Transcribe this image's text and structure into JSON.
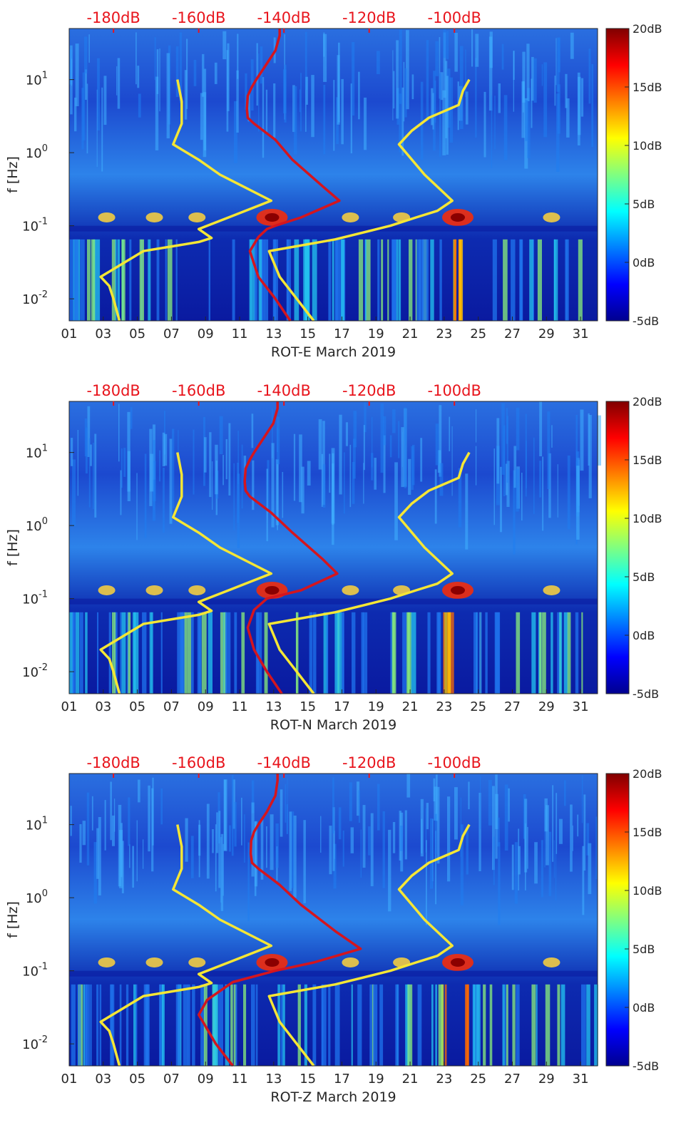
{
  "chart_data": [
    {
      "type": "heatmap",
      "title": "",
      "xlabel": "ROT-E March 2019",
      "ylabel": "f [Hz]",
      "x_ticks": [
        "01",
        "03",
        "05",
        "07",
        "09",
        "11",
        "13",
        "15",
        "17",
        "19",
        "21",
        "23",
        "25",
        "27",
        "29",
        "31"
      ],
      "x_range": [
        1,
        32
      ],
      "y_ticks": [
        {
          "value": 0.01,
          "base": "10",
          "exp": "-2"
        },
        {
          "value": 0.1,
          "base": "10",
          "exp": "-1"
        },
        {
          "value": 1,
          "base": "10",
          "exp": "0"
        },
        {
          "value": 10,
          "base": "10",
          "exp": "1"
        }
      ],
      "y_range": [
        0.005,
        50
      ],
      "y_scale": "log",
      "top_db_labels": [
        "-180dB",
        "-160dB",
        "-140dB",
        "-120dB",
        "-100dB"
      ],
      "top_db_values": [
        -180,
        -160,
        -140,
        -120,
        -100
      ],
      "colorbar": {
        "ticks": [
          "20dB",
          "15dB",
          "10dB",
          "5dB",
          "0dB",
          "-5dB"
        ],
        "range": [
          -5,
          20
        ]
      },
      "series": [
        {
          "name": "yellow-left",
          "color": "#f5e635",
          "db_offset": -185,
          "points": [
            [
              0.005,
              -178.6
            ],
            [
              0.01,
              -180
            ],
            [
              0.015,
              -181
            ],
            [
              0.02,
              -183
            ],
            [
              0.03,
              -178
            ],
            [
              0.045,
              -173
            ],
            [
              0.06,
              -160
            ],
            [
              0.068,
              -157
            ],
            [
              0.09,
              -160
            ],
            [
              0.1,
              -158
            ],
            [
              0.13,
              -153
            ],
            [
              0.22,
              -143
            ],
            [
              0.5,
              -155
            ],
            [
              0.8,
              -160
            ],
            [
              1.3,
              -166
            ],
            [
              2.5,
              -164
            ],
            [
              5,
              -164
            ],
            [
              10,
              -165
            ]
          ]
        },
        {
          "name": "red",
          "color": "#d4151e",
          "db_offset": 0,
          "points": [
            [
              0.005,
              -138.5
            ],
            [
              0.01,
              -142
            ],
            [
              0.02,
              -146
            ],
            [
              0.045,
              -148
            ],
            [
              0.07,
              -146
            ],
            [
              0.09,
              -144
            ],
            [
              0.1,
              -142
            ],
            [
              0.13,
              -136
            ],
            [
              0.22,
              -127
            ],
            [
              0.35,
              -131
            ],
            [
              0.8,
              -138
            ],
            [
              1.5,
              -142
            ],
            [
              2.5,
              -147
            ],
            [
              3,
              -148.5
            ],
            [
              4,
              -148.7
            ],
            [
              6,
              -148.5
            ],
            [
              8,
              -147.5
            ],
            [
              10,
              -146.5
            ],
            [
              15,
              -144.5
            ],
            [
              25,
              -142
            ],
            [
              40,
              -141
            ],
            [
              50,
              -141
            ]
          ]
        },
        {
          "name": "yellow-right",
          "color": "#f5e635",
          "db_offset": 0,
          "points": [
            [
              0.005,
              -133
            ],
            [
              0.01,
              -137
            ],
            [
              0.02,
              -141
            ],
            [
              0.045,
              -143.5
            ],
            [
              0.065,
              -128
            ],
            [
              0.1,
              -115
            ],
            [
              0.13,
              -109
            ],
            [
              0.16,
              -104
            ],
            [
              0.22,
              -100.5
            ],
            [
              0.5,
              -107
            ],
            [
              1.3,
              -113
            ],
            [
              2,
              -110
            ],
            [
              3,
              -106
            ],
            [
              4.5,
              -99
            ],
            [
              7,
              -98
            ],
            [
              10,
              -96.5
            ]
          ]
        }
      ]
    },
    {
      "type": "heatmap",
      "title": "",
      "xlabel": "ROT-N March 2019",
      "ylabel": "f [Hz]",
      "x_ticks": [
        "01",
        "03",
        "05",
        "07",
        "09",
        "11",
        "13",
        "15",
        "17",
        "19",
        "21",
        "23",
        "25",
        "27",
        "29",
        "31"
      ],
      "x_range": [
        1,
        32
      ],
      "y_ticks": [
        {
          "value": 0.01,
          "base": "10",
          "exp": "-2"
        },
        {
          "value": 0.1,
          "base": "10",
          "exp": "-1"
        },
        {
          "value": 1,
          "base": "10",
          "exp": "0"
        },
        {
          "value": 10,
          "base": "10",
          "exp": "1"
        }
      ],
      "y_range": [
        0.005,
        50
      ],
      "y_scale": "log",
      "top_db_labels": [
        "-180dB",
        "-160dB",
        "-140dB",
        "-120dB",
        "-100dB"
      ],
      "top_db_values": [
        -180,
        -160,
        -140,
        -120,
        -100
      ],
      "colorbar": {
        "ticks": [
          "20dB",
          "15dB",
          "10dB",
          "5dB",
          "0dB",
          "-5dB"
        ],
        "range": [
          -5,
          20
        ]
      },
      "series": [
        {
          "name": "yellow-left",
          "color": "#f5e635",
          "points": [
            [
              0.005,
              -178.6
            ],
            [
              0.01,
              -180
            ],
            [
              0.015,
              -181
            ],
            [
              0.02,
              -183
            ],
            [
              0.03,
              -178
            ],
            [
              0.045,
              -173
            ],
            [
              0.06,
              -160
            ],
            [
              0.068,
              -157
            ],
            [
              0.09,
              -160
            ],
            [
              0.1,
              -158
            ],
            [
              0.13,
              -153
            ],
            [
              0.22,
              -143
            ],
            [
              0.5,
              -155
            ],
            [
              0.8,
              -160
            ],
            [
              1.3,
              -166
            ],
            [
              2.5,
              -164
            ],
            [
              5,
              -164
            ],
            [
              10,
              -165
            ]
          ]
        },
        {
          "name": "red",
          "color": "#d4151e",
          "points": [
            [
              0.005,
              -140.5
            ],
            [
              0.01,
              -144
            ],
            [
              0.02,
              -147
            ],
            [
              0.04,
              -148.5
            ],
            [
              0.07,
              -147
            ],
            [
              0.1,
              -144
            ],
            [
              0.13,
              -136
            ],
            [
              0.22,
              -127.5
            ],
            [
              0.35,
              -131
            ],
            [
              0.8,
              -138
            ],
            [
              1.5,
              -143
            ],
            [
              2.5,
              -148
            ],
            [
              3,
              -149
            ],
            [
              4,
              -149.2
            ],
            [
              6,
              -149
            ],
            [
              8,
              -148
            ],
            [
              10,
              -147
            ],
            [
              15,
              -145
            ],
            [
              25,
              -142.5
            ],
            [
              40,
              -141.5
            ],
            [
              50,
              -141.5
            ]
          ]
        },
        {
          "name": "yellow-right",
          "color": "#f5e635",
          "points": [
            [
              0.005,
              -133
            ],
            [
              0.01,
              -137
            ],
            [
              0.02,
              -141
            ],
            [
              0.045,
              -143.5
            ],
            [
              0.065,
              -128
            ],
            [
              0.1,
              -115
            ],
            [
              0.13,
              -109
            ],
            [
              0.16,
              -104
            ],
            [
              0.22,
              -100.5
            ],
            [
              0.5,
              -107
            ],
            [
              1.3,
              -113
            ],
            [
              2,
              -110
            ],
            [
              3,
              -106
            ],
            [
              4.5,
              -99
            ],
            [
              7,
              -98
            ],
            [
              10,
              -96.5
            ]
          ]
        }
      ]
    },
    {
      "type": "heatmap",
      "title": "",
      "xlabel": "ROT-Z March 2019",
      "ylabel": "f [Hz]",
      "x_ticks": [
        "01",
        "03",
        "05",
        "07",
        "09",
        "11",
        "13",
        "15",
        "17",
        "19",
        "21",
        "23",
        "25",
        "27",
        "29",
        "31"
      ],
      "x_range": [
        1,
        32
      ],
      "y_ticks": [
        {
          "value": 0.01,
          "base": "10",
          "exp": "-2"
        },
        {
          "value": 0.1,
          "base": "10",
          "exp": "-1"
        },
        {
          "value": 1,
          "base": "10",
          "exp": "0"
        },
        {
          "value": 10,
          "base": "10",
          "exp": "1"
        }
      ],
      "y_range": [
        0.005,
        50
      ],
      "y_scale": "log",
      "top_db_labels": [
        "-180dB",
        "-160dB",
        "-140dB",
        "-120dB",
        "-100dB"
      ],
      "top_db_values": [
        -180,
        -160,
        -140,
        -120,
        -100
      ],
      "colorbar": {
        "ticks": [
          "20dB",
          "15dB",
          "10dB",
          "5dB",
          "0dB",
          "-5dB"
        ],
        "range": [
          -5,
          20
        ]
      },
      "series": [
        {
          "name": "yellow-left",
          "color": "#f5e635",
          "points": [
            [
              0.005,
              -178.6
            ],
            [
              0.01,
              -180
            ],
            [
              0.015,
              -181
            ],
            [
              0.02,
              -183
            ],
            [
              0.03,
              -178
            ],
            [
              0.045,
              -173
            ],
            [
              0.06,
              -160
            ],
            [
              0.068,
              -157
            ],
            [
              0.09,
              -160
            ],
            [
              0.1,
              -158
            ],
            [
              0.13,
              -153
            ],
            [
              0.22,
              -143
            ],
            [
              0.5,
              -155
            ],
            [
              0.8,
              -160
            ],
            [
              1.3,
              -166
            ],
            [
              2.5,
              -164
            ],
            [
              5,
              -164
            ],
            [
              10,
              -165
            ]
          ]
        },
        {
          "name": "red",
          "color": "#d4151e",
          "points": [
            [
              0.005,
              -152
            ],
            [
              0.01,
              -156
            ],
            [
              0.02,
              -159
            ],
            [
              0.025,
              -160
            ],
            [
              0.04,
              -158
            ],
            [
              0.07,
              -152
            ],
            [
              0.1,
              -142
            ],
            [
              0.13,
              -133
            ],
            [
              0.2,
              -122
            ],
            [
              0.35,
              -128
            ],
            [
              0.8,
              -136
            ],
            [
              1.5,
              -141
            ],
            [
              2.5,
              -146
            ],
            [
              3,
              -147.5
            ],
            [
              4,
              -147.8
            ],
            [
              6,
              -147.7
            ],
            [
              8,
              -147
            ],
            [
              10,
              -146
            ],
            [
              15,
              -144
            ],
            [
              25,
              -142
            ],
            [
              40,
              -141.5
            ],
            [
              50,
              -141.5
            ]
          ]
        },
        {
          "name": "yellow-right",
          "color": "#f5e635",
          "points": [
            [
              0.005,
              -133
            ],
            [
              0.01,
              -137
            ],
            [
              0.02,
              -141
            ],
            [
              0.045,
              -143.5
            ],
            [
              0.065,
              -128
            ],
            [
              0.1,
              -115
            ],
            [
              0.13,
              -109
            ],
            [
              0.16,
              -104
            ],
            [
              0.22,
              -100.5
            ],
            [
              0.5,
              -107
            ],
            [
              1.3,
              -113
            ],
            [
              2,
              -110
            ],
            [
              3,
              -106
            ],
            [
              4.5,
              -99
            ],
            [
              7,
              -98
            ],
            [
              10,
              -96.5
            ]
          ]
        }
      ]
    }
  ],
  "colors": {
    "colormap": [
      "#00008f",
      "#0000ff",
      "#0080ff",
      "#00ffff",
      "#80ff80",
      "#ffff00",
      "#ff8000",
      "#ff0000",
      "#800000"
    ],
    "curve_yellow": "#f5e635",
    "curve_red": "#d4151e",
    "db_label": "#e8141c"
  }
}
